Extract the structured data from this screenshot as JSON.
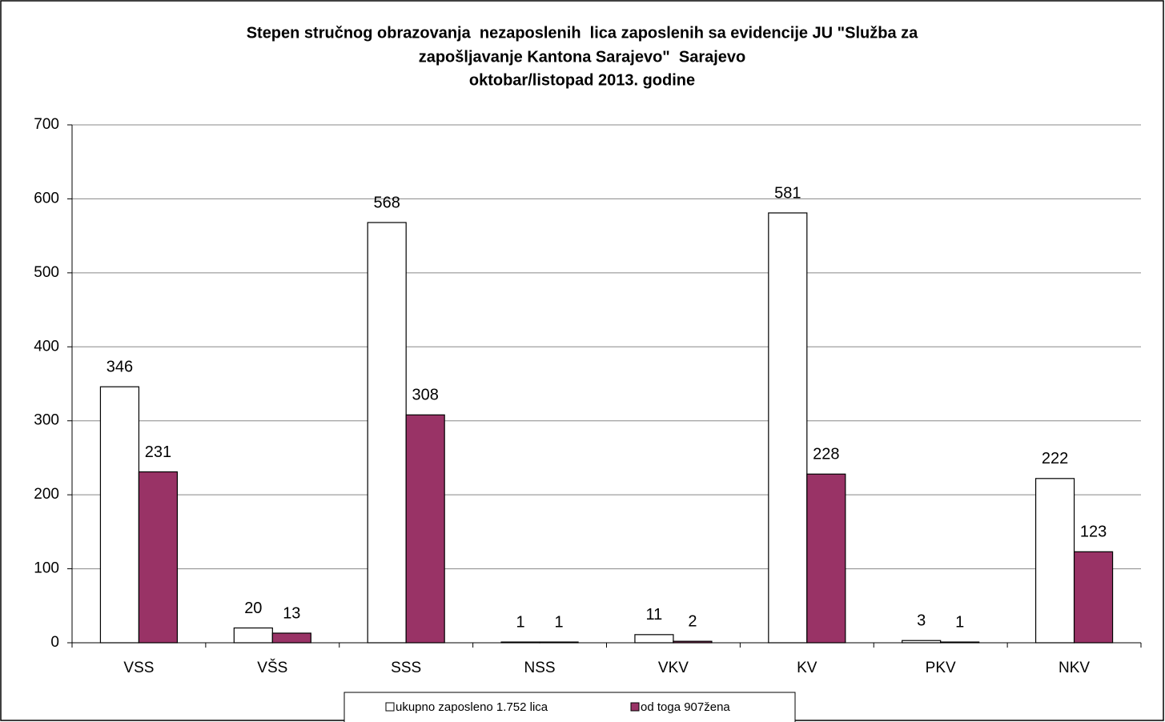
{
  "chart_data": {
    "type": "bar",
    "title": [
      "Stepen stručnog obrazovanja  nezaposlenih  lica zaposlenih sa evidencije JU \"Služba za",
      "zapošljavanje Kantona Sarajevo\"  Sarajevo",
      "oktobar/listopad 2013. godine"
    ],
    "categories": [
      "VSS",
      "VŠS",
      "SSS",
      "NSS",
      "VKV",
      "KV",
      "PKV",
      "NKV"
    ],
    "series": [
      {
        "name": "ukupno zaposleno 1.752 lica",
        "color": "#ffffff",
        "values": [
          346,
          20,
          568,
          1,
          11,
          581,
          3,
          222
        ]
      },
      {
        "name": "od toga 907žena",
        "color": "#993366",
        "values": [
          231,
          13,
          308,
          1,
          2,
          228,
          1,
          123
        ]
      }
    ],
    "ylim": [
      0,
      700
    ],
    "yticks": [
      0,
      100,
      200,
      300,
      400,
      500,
      600,
      700
    ],
    "grid": true,
    "legend": "bottom"
  }
}
